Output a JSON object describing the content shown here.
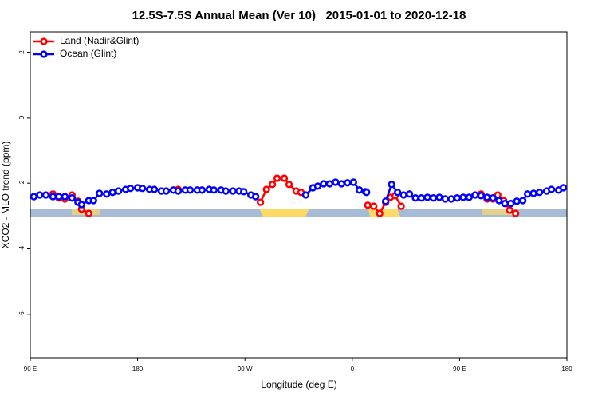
{
  "chart_data": {
    "type": "line",
    "title": "12.5S-7.5S Annual Mean (Ver 10)   2015-01-01 to 2020-12-18",
    "x_label": "Longitude (deg E)",
    "y_label": "XCO2 - MLO trend (ppm)",
    "xlim": [
      90,
      540
    ],
    "ylim": [
      -7.34,
      2.62
    ],
    "xticks": [
      {
        "value": 90,
        "label": "90 E"
      },
      180,
      {
        "value": 270,
        "label": "90 W"
      },
      {
        "value": 360,
        "label": "0"
      },
      {
        "value": 450,
        "label": "90 E"
      },
      {
        "value": 540,
        "label": "180"
      }
    ],
    "yticks": [
      2,
      0,
      -2,
      -4,
      -6
    ],
    "legend": "top-left",
    "series": [
      {
        "name": "Land (Nadir&Glint)",
        "color": "#ff0000",
        "x": [
          109,
          114,
          119,
          125,
          130,
          133,
          139,
          null,
          214,
          null,
          283,
          288,
          293,
          297,
          303,
          307,
          313,
          317,
          null,
          373,
          378,
          383,
          388,
          392,
          396,
          401,
          null,
          468,
          473,
          478,
          482,
          487,
          492,
          497
        ],
        "values": [
          -2.33,
          -2.45,
          -2.48,
          -2.36,
          -2.55,
          -2.79,
          -2.92,
          null,
          -2.19,
          null,
          -2.58,
          -2.19,
          -2.04,
          -1.85,
          -1.85,
          -2.04,
          -2.24,
          -2.28,
          null,
          -2.67,
          -2.7,
          -2.92,
          -2.58,
          -2.43,
          -2.38,
          -2.7,
          null,
          -2.33,
          -2.48,
          -2.48,
          -2.36,
          -2.53,
          -2.82,
          -2.92
        ]
      },
      {
        "name": "Ocean (Glint)",
        "color": "#0000ff",
        "x": [
          93,
          98,
          103,
          109,
          114,
          119,
          125,
          130,
          133,
          139,
          143,
          148,
          154,
          159,
          164,
          170,
          174,
          180,
          184,
          190,
          194,
          200,
          204,
          210,
          214,
          220,
          224,
          230,
          234,
          240,
          244,
          250,
          254,
          260,
          265,
          269,
          275,
          279,
          null,
          321,
          327,
          331,
          336,
          341,
          346,
          351,
          356,
          361,
          366,
          371,
          372,
          null,
          388,
          393,
          398,
          403,
          408,
          413,
          418,
          423,
          428,
          433,
          438,
          443,
          448,
          453,
          458,
          463,
          468,
          473,
          478,
          483,
          488,
          493,
          498,
          503,
          507,
          512,
          517,
          523,
          527,
          533,
          537
        ],
        "values": [
          -2.41,
          -2.36,
          -2.36,
          -2.41,
          -2.41,
          -2.41,
          -2.45,
          -2.58,
          -2.65,
          -2.53,
          -2.53,
          -2.31,
          -2.33,
          -2.28,
          -2.24,
          -2.19,
          -2.16,
          -2.14,
          -2.16,
          -2.19,
          -2.19,
          -2.24,
          -2.24,
          -2.21,
          -2.24,
          -2.21,
          -2.21,
          -2.21,
          -2.21,
          -2.19,
          -2.21,
          -2.21,
          -2.24,
          -2.24,
          -2.24,
          -2.26,
          -2.36,
          -2.41,
          null,
          -2.36,
          -2.14,
          -2.09,
          -2.02,
          -2.02,
          -1.97,
          -2.02,
          -1.99,
          -1.97,
          -2.21,
          -2.26,
          -2.28,
          null,
          -2.55,
          -2.04,
          -2.28,
          -2.36,
          -2.33,
          -2.45,
          -2.45,
          -2.43,
          -2.45,
          -2.43,
          -2.48,
          -2.48,
          -2.45,
          -2.43,
          -2.43,
          -2.36,
          -2.38,
          -2.43,
          -2.45,
          -2.53,
          -2.62,
          -2.62,
          -2.55,
          -2.53,
          -2.33,
          -2.31,
          -2.28,
          -2.24,
          -2.19,
          -2.21,
          -2.14
        ]
      }
    ]
  }
}
